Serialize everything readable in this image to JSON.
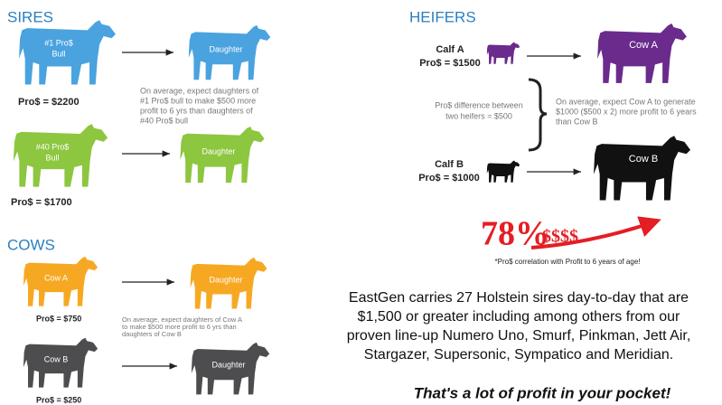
{
  "sires": {
    "title": "SIRES",
    "top": {
      "label": [
        "#1 Pro$",
        "Bull"
      ],
      "daughter": "Daughter",
      "price": "Pro$ = $2200"
    },
    "bottom": {
      "label": [
        "#40 Pro$",
        "Bull"
      ],
      "daughter": "Daughter",
      "price": "Pro$ = $1700"
    },
    "note": [
      "On average, expect daughters of",
      "#1 Pro$ bull to make $500 more",
      "profit to 6 yrs than daughters of",
      "#40 Pro$ bull"
    ]
  },
  "cows": {
    "title": "COWS",
    "top": {
      "label": "Cow A",
      "daughter": "Daughter",
      "price": "Pro$ = $750"
    },
    "bottom": {
      "label": "Cow B",
      "daughter": "Daughter",
      "price": "Pro$ = $250"
    },
    "note": [
      "On average, expect daughters of Cow A",
      "to make $500 more profit to 6 yrs than",
      "daughters of Cow B"
    ]
  },
  "heifers": {
    "title": "HEIFERS",
    "top": {
      "calf": "Calf A",
      "price": "Pro$ = $1500",
      "cow": "Cow A"
    },
    "bottom": {
      "calf": "Calf B",
      "price": "Pro$ = $1000",
      "cow": "Cow B"
    },
    "difference": [
      "Pro$ difference between",
      "two heifers = $500"
    ],
    "note": [
      "On average, expect Cow A to generate",
      "$1000 ($500 x 2) more profit to 6 years",
      "than Cow B"
    ]
  },
  "correlation": {
    "value": "78%",
    "symbols": "$$$$",
    "note": "*Pro$ correlation with Profit to 6 years of age!"
  },
  "summary": [
    "EastGen carries 27 Holstein sires day-to-day that are",
    "$1,500 or greater including among others from our",
    "proven line-up Numero Uno, Smurf, Pinkman, Jett Air,",
    "Stargazer, Supersonic, Sympatico and Meridian."
  ],
  "tagline": "That's a lot of profit in your pocket!"
}
